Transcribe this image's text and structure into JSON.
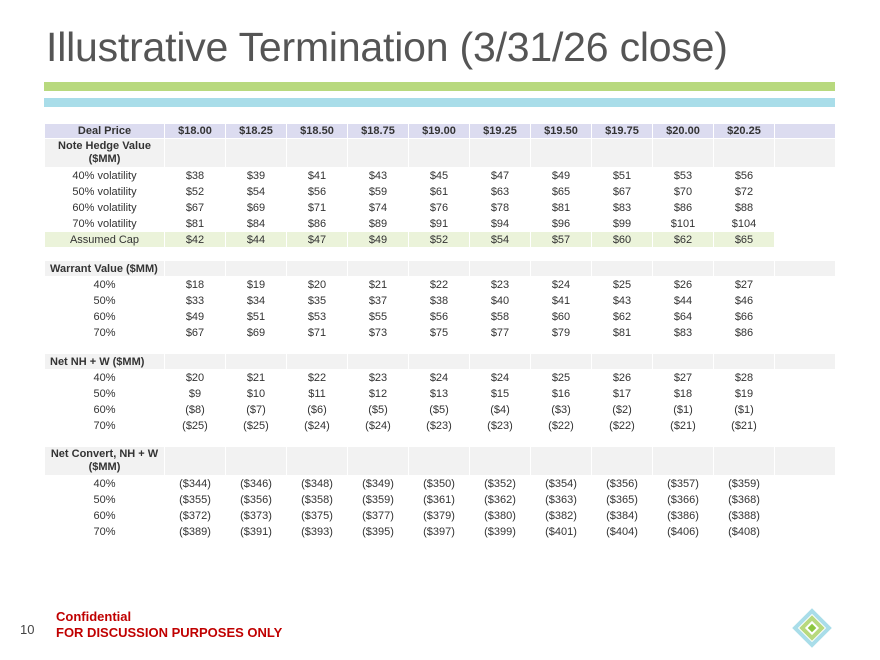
{
  "title": "Illustrative Termination (3/31/26 close)",
  "accent_colors": {
    "green_bar": "#b8d97e",
    "blue_bar": "#a9dde9",
    "header_fill": "#dcdcf0",
    "cap_fill": "#ebf3da",
    "confidential_text": "#c00000"
  },
  "table": {
    "header": {
      "label": "Deal Price",
      "prices": [
        "$18.00",
        "$18.25",
        "$18.50",
        "$18.75",
        "$19.00",
        "$19.25",
        "$19.50",
        "$19.75",
        "$20.00",
        "$20.25"
      ]
    },
    "note_hedge": {
      "label": "Note Hedge Value ($MM)",
      "rows": [
        {
          "label": "40% volatility",
          "values": [
            "$38",
            "$39",
            "$41",
            "$43",
            "$45",
            "$47",
            "$49",
            "$51",
            "$53",
            "$56"
          ]
        },
        {
          "label": "50% volatility",
          "values": [
            "$52",
            "$54",
            "$56",
            "$59",
            "$61",
            "$63",
            "$65",
            "$67",
            "$70",
            "$72"
          ]
        },
        {
          "label": "60% volatility",
          "values": [
            "$67",
            "$69",
            "$71",
            "$74",
            "$76",
            "$78",
            "$81",
            "$83",
            "$86",
            "$88"
          ]
        },
        {
          "label": "70% volatility",
          "values": [
            "$81",
            "$84",
            "$86",
            "$89",
            "$91",
            "$94",
            "$96",
            "$99",
            "$101",
            "$104"
          ]
        }
      ],
      "cap": {
        "label": "Assumed Cap",
        "values": [
          "$42",
          "$44",
          "$47",
          "$49",
          "$52",
          "$54",
          "$57",
          "$60",
          "$62",
          "$65"
        ]
      }
    },
    "warrant": {
      "label": "Warrant Value ($MM)",
      "rows": [
        {
          "label": "40%",
          "values": [
            "$18",
            "$19",
            "$20",
            "$21",
            "$22",
            "$23",
            "$24",
            "$25",
            "$26",
            "$27"
          ]
        },
        {
          "label": "50%",
          "values": [
            "$33",
            "$34",
            "$35",
            "$37",
            "$38",
            "$40",
            "$41",
            "$43",
            "$44",
            "$46"
          ]
        },
        {
          "label": "60%",
          "values": [
            "$49",
            "$51",
            "$53",
            "$55",
            "$56",
            "$58",
            "$60",
            "$62",
            "$64",
            "$66"
          ]
        },
        {
          "label": "70%",
          "values": [
            "$67",
            "$69",
            "$71",
            "$73",
            "$75",
            "$77",
            "$79",
            "$81",
            "$83",
            "$86"
          ]
        }
      ]
    },
    "net_nh_w": {
      "label": "Net NH + W ($MM)",
      "rows": [
        {
          "label": "40%",
          "values": [
            "$20",
            "$21",
            "$22",
            "$23",
            "$24",
            "$24",
            "$25",
            "$26",
            "$27",
            "$28"
          ]
        },
        {
          "label": "50%",
          "values": [
            "$9",
            "$10",
            "$11",
            "$12",
            "$13",
            "$15",
            "$16",
            "$17",
            "$18",
            "$19"
          ]
        },
        {
          "label": "60%",
          "values": [
            "($8)",
            "($7)",
            "($6)",
            "($5)",
            "($5)",
            "($4)",
            "($3)",
            "($2)",
            "($1)",
            "($1)"
          ]
        },
        {
          "label": "70%",
          "values": [
            "($25)",
            "($25)",
            "($24)",
            "($24)",
            "($23)",
            "($23)",
            "($22)",
            "($22)",
            "($21)",
            "($21)"
          ]
        }
      ]
    },
    "net_convert": {
      "label": "Net Convert, NH + W ($MM)",
      "rows": [
        {
          "label": "40%",
          "values": [
            "($344)",
            "($346)",
            "($348)",
            "($349)",
            "($350)",
            "($352)",
            "($354)",
            "($356)",
            "($357)",
            "($359)"
          ]
        },
        {
          "label": "50%",
          "values": [
            "($355)",
            "($356)",
            "($358)",
            "($359)",
            "($361)",
            "($362)",
            "($363)",
            "($365)",
            "($366)",
            "($368)"
          ]
        },
        {
          "label": "60%",
          "values": [
            "($372)",
            "($373)",
            "($375)",
            "($377)",
            "($379)",
            "($380)",
            "($382)",
            "($384)",
            "($386)",
            "($388)"
          ]
        },
        {
          "label": "70%",
          "values": [
            "($389)",
            "($391)",
            "($393)",
            "($395)",
            "($397)",
            "($399)",
            "($401)",
            "($404)",
            "($406)",
            "($408)"
          ]
        }
      ]
    }
  },
  "footer": {
    "confidential": "Confidential",
    "discussion": "FOR DISCUSSION PURPOSES ONLY",
    "page_number": "10",
    "logo_icon": "diamond-logo-icon"
  }
}
